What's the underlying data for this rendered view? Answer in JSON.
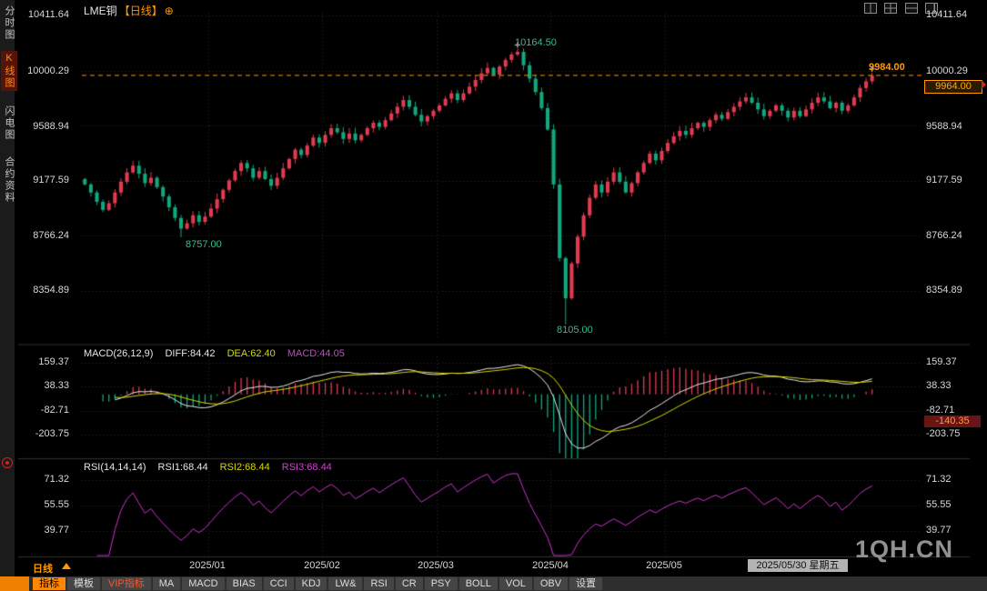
{
  "header": {
    "symbol": "LME铜",
    "period_tag": "【日线】",
    "add_icon": "⊕"
  },
  "sidebar": {
    "items": [
      {
        "label": "分时图",
        "active": false
      },
      {
        "label": "K线图",
        "active": true
      },
      {
        "label": "闪电图",
        "active": false
      },
      {
        "label": "合约资料",
        "active": false
      }
    ]
  },
  "price_axis": [
    "10411.64",
    "10000.29",
    "9588.94",
    "9177.59",
    "8766.24",
    "8354.89"
  ],
  "annotations": {
    "peak": "10164.50",
    "low1": "8757.00",
    "low2": "8105.00",
    "last_high": "9984.00",
    "last_price": "9964.00"
  },
  "macd_panel": {
    "title": "MACD(26,12,9)",
    "diff_label": "DIFF:84.42",
    "dea_label": "DEA:62.40",
    "macd_label": "MACD:44.05",
    "axis": [
      "159.37",
      "38.33",
      "-82.71",
      "-203.75"
    ],
    "badge": "-140.35"
  },
  "rsi_panel": {
    "title": "RSI(14,14,14)",
    "rsi1_label": "RSI1:68.44",
    "rsi2_label": "RSI2:68.44",
    "rsi3_label": "RSI3:68.44",
    "axis": [
      "71.32",
      "55.55",
      "39.77"
    ]
  },
  "x_axis": {
    "months": [
      "2025/01",
      "2025/02",
      "2025/03",
      "2025/04",
      "2025/05"
    ],
    "date_label": "2025/05/30 星期五"
  },
  "watermark": "1QH.CN",
  "bottom": {
    "period": "日线",
    "tabs": [
      "指标",
      "模板",
      "VIP指标",
      "MA",
      "MACD",
      "BIAS",
      "CCI",
      "KDJ",
      "LW&",
      "RSI",
      "CR",
      "PSY",
      "BOLL",
      "VOL",
      "OBV",
      "设置"
    ]
  },
  "colors": {
    "accent": "#ff9900",
    "up": "#e23b50",
    "down": "#11a87e",
    "diff_line": "#e8e8e8",
    "dea_line": "#d8d800",
    "rsi_line": "#cc33cc",
    "annotation": "#2fbf8f",
    "grid": "#2c2c2c"
  },
  "chart_data": {
    "type": "candlestick",
    "title": "LME铜 日线",
    "y_axis": [
      10411.64,
      10000.29,
      9588.94,
      9177.59,
      8766.24,
      8354.89
    ],
    "current_price": 9964.0,
    "last_high": 9984.0,
    "peak_price": 10164.5,
    "low1_price": 8757.0,
    "low2_price": 8105.0,
    "months": [
      "2025/01",
      "2025/02",
      "2025/03",
      "2025/04",
      "2025/05"
    ],
    "month_tick_indices": [
      21,
      40,
      59,
      78,
      97
    ],
    "closes": [
      9150,
      9090,
      9020,
      8960,
      9010,
      9090,
      9170,
      9240,
      9290,
      9230,
      9160,
      9200,
      9130,
      9060,
      8980,
      8900,
      8820,
      8860,
      8920,
      8870,
      8910,
      8970,
      9040,
      9110,
      9180,
      9250,
      9310,
      9270,
      9200,
      9250,
      9190,
      9140,
      9200,
      9270,
      9340,
      9410,
      9370,
      9440,
      9500,
      9460,
      9520,
      9570,
      9540,
      9490,
      9530,
      9480,
      9520,
      9570,
      9610,
      9580,
      9630,
      9680,
      9730,
      9780,
      9730,
      9670,
      9620,
      9660,
      9700,
      9740,
      9790,
      9830,
      9780,
      9830,
      9880,
      9930,
      9980,
      10020,
      9970,
      10030,
      10080,
      10120,
      10140,
      10040,
      9940,
      9840,
      9720,
      9560,
      9150,
      8600,
      8300,
      8560,
      8760,
      8920,
      9050,
      9150,
      9090,
      9170,
      9240,
      9170,
      9090,
      9160,
      9240,
      9310,
      9380,
      9330,
      9400,
      9460,
      9510,
      9550,
      9520,
      9570,
      9610,
      9580,
      9630,
      9670,
      9640,
      9690,
      9730,
      9770,
      9800,
      9760,
      9710,
      9660,
      9700,
      9740,
      9700,
      9650,
      9700,
      9660,
      9710,
      9760,
      9800,
      9770,
      9720,
      9760,
      9700,
      9740,
      9800,
      9870,
      9920,
      9964
    ],
    "overrides": {
      "16": {
        "low": 8757
      },
      "72": {
        "high": 10164.5
      },
      "80": {
        "low": 8105
      },
      "131": {
        "high": 9984,
        "close": 9964
      }
    },
    "macd": {
      "params": [
        26,
        12,
        9
      ],
      "diff": 84.42,
      "dea": 62.4,
      "macd": 44.05,
      "axis": [
        159.37,
        38.33,
        -82.71,
        -203.75
      ],
      "badge": -140.35
    },
    "rsi": {
      "params": [
        14,
        14,
        14
      ],
      "rsi1": 68.44,
      "rsi2": 68.44,
      "rsi3": 68.44,
      "axis": [
        71.32,
        55.55,
        39.77
      ]
    }
  }
}
